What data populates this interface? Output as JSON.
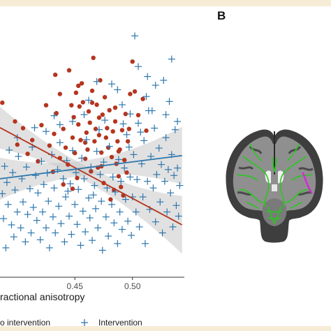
{
  "panel_b_label": "B",
  "colors": {
    "no_intervention": "#b5351f",
    "intervention": "#2f77ad",
    "axis": "#333333",
    "ci_band": "#c8c8c8",
    "tract_green": "#28c81e",
    "tract_magenta": "#d629d6",
    "page_band": "#f7ecd6"
  },
  "brain_icon": "coronal-mri-slice",
  "chart_data": {
    "type": "scatter",
    "title": "",
    "xlabel": "ractional anisotropy",
    "ylabel": "",
    "xlim": [
      0.385,
      0.545
    ],
    "ylim": [
      0,
      1
    ],
    "x_ticks": [
      0.45,
      0.5
    ],
    "x_tick_labels": [
      "0.45",
      "0.50"
    ],
    "grid": false,
    "legend_position": "bottom",
    "legend": [
      "o intervention",
      "Intervention"
    ],
    "series": [
      {
        "name": "o intervention",
        "marker": "circle",
        "fit_line": {
          "x": [
            0.385,
            0.543
          ],
          "y": [
            0.6,
            0.21
          ]
        },
        "points": [
          [
            0.387,
            0.7
          ],
          [
            0.398,
            0.625
          ],
          [
            0.4,
            0.532
          ],
          [
            0.405,
            0.598
          ],
          [
            0.409,
            0.495
          ],
          [
            0.413,
            0.55
          ],
          [
            0.418,
            0.465
          ],
          [
            0.421,
            0.61
          ],
          [
            0.425,
            0.69
          ],
          [
            0.428,
            0.528
          ],
          [
            0.431,
            0.423
          ],
          [
            0.432,
            0.575
          ],
          [
            0.433,
            0.812
          ],
          [
            0.434,
            0.658
          ],
          [
            0.437,
            0.735
          ],
          [
            0.44,
            0.595
          ],
          [
            0.442,
            0.52
          ],
          [
            0.444,
            0.452
          ],
          [
            0.445,
            0.83
          ],
          [
            0.447,
            0.69
          ],
          [
            0.448,
            0.56
          ],
          [
            0.449,
            0.642
          ],
          [
            0.45,
            0.498
          ],
          [
            0.451,
            0.74
          ],
          [
            0.452,
            0.398
          ],
          [
            0.453,
            0.613
          ],
          [
            0.454,
            0.685
          ],
          [
            0.455,
            0.55
          ],
          [
            0.456,
            0.778
          ],
          [
            0.457,
            0.702
          ],
          [
            0.459,
            0.475
          ],
          [
            0.46,
            0.58
          ],
          [
            0.461,
            0.512
          ],
          [
            0.462,
            0.665
          ],
          [
            0.463,
            0.62
          ],
          [
            0.464,
            0.425
          ],
          [
            0.465,
            0.748
          ],
          [
            0.466,
            0.88
          ],
          [
            0.467,
            0.545
          ],
          [
            0.468,
            0.595
          ],
          [
            0.469,
            0.692
          ],
          [
            0.47,
            0.44
          ],
          [
            0.471,
            0.57
          ],
          [
            0.472,
            0.79
          ],
          [
            0.473,
            0.5
          ],
          [
            0.474,
            0.652
          ],
          [
            0.475,
            0.378
          ],
          [
            0.476,
            0.722
          ],
          [
            0.478,
            0.598
          ],
          [
            0.479,
            0.52
          ],
          [
            0.48,
            0.67
          ],
          [
            0.481,
            0.312
          ],
          [
            0.482,
            0.482
          ],
          [
            0.483,
            0.585
          ],
          [
            0.484,
            0.35
          ],
          [
            0.485,
            0.625
          ],
          [
            0.486,
            0.455
          ],
          [
            0.487,
            0.545
          ],
          [
            0.488,
            0.405
          ],
          [
            0.489,
            0.512
          ],
          [
            0.49,
            0.362
          ],
          [
            0.491,
            0.59
          ],
          [
            0.492,
            0.328
          ],
          [
            0.493,
            0.47
          ],
          [
            0.494,
            0.655
          ],
          [
            0.496,
            0.545
          ],
          [
            0.497,
            0.595
          ],
          [
            0.498,
            0.735
          ],
          [
            0.5,
            0.865
          ],
          [
            0.502,
            0.745
          ],
          [
            0.505,
            0.65
          ],
          [
            0.509,
            0.715
          ],
          [
            0.512,
            0.588
          ],
          [
            0.44,
            0.372
          ],
          [
            0.448,
            0.355
          ],
          [
            0.465,
            0.7
          ],
          [
            0.477,
            0.56
          ],
          [
            0.437,
            0.478
          ],
          [
            0.495,
            0.42
          ],
          [
            0.453,
            0.768
          ],
          [
            0.485,
            0.68
          ],
          [
            0.473,
            0.445
          ],
          [
            0.459,
            0.54
          ],
          [
            0.471,
            0.64
          ],
          [
            0.488,
            0.505
          ]
        ]
      },
      {
        "name": "Intervention",
        "marker": "plus",
        "fit_line": {
          "x": [
            0.385,
            0.543
          ],
          "y": [
            0.395,
            0.488
          ]
        },
        "points": [
          [
            0.387,
            0.335
          ],
          [
            0.388,
            0.235
          ],
          [
            0.389,
            0.445
          ],
          [
            0.39,
            0.118
          ],
          [
            0.391,
            0.38
          ],
          [
            0.392,
            0.292
          ],
          [
            0.393,
            0.51
          ],
          [
            0.395,
            0.21
          ],
          [
            0.396,
            0.42
          ],
          [
            0.397,
            0.162
          ],
          [
            0.398,
            0.35
          ],
          [
            0.4,
            0.262
          ],
          [
            0.401,
            0.485
          ],
          [
            0.403,
            0.198
          ],
          [
            0.404,
            0.395
          ],
          [
            0.405,
            0.302
          ],
          [
            0.407,
            0.142
          ],
          [
            0.408,
            0.442
          ],
          [
            0.409,
            0.252
          ],
          [
            0.411,
            0.355
          ],
          [
            0.412,
            0.178
          ],
          [
            0.413,
            0.522
          ],
          [
            0.414,
            0.28
          ],
          [
            0.416,
            0.408
          ],
          [
            0.417,
            0.228
          ],
          [
            0.418,
            0.338
          ],
          [
            0.42,
            0.15
          ],
          [
            0.421,
            0.465
          ],
          [
            0.422,
            0.262
          ],
          [
            0.423,
            0.372
          ],
          [
            0.425,
            0.198
          ],
          [
            0.426,
            0.418
          ],
          [
            0.427,
            0.305
          ],
          [
            0.428,
            0.118
          ],
          [
            0.43,
            0.492
          ],
          [
            0.431,
            0.242
          ],
          [
            0.432,
            0.358
          ],
          [
            0.433,
            0.178
          ],
          [
            0.435,
            0.432
          ],
          [
            0.436,
            0.285
          ],
          [
            0.437,
            0.54
          ],
          [
            0.438,
            0.215
          ],
          [
            0.44,
            0.395
          ],
          [
            0.441,
            0.142
          ],
          [
            0.442,
            0.322
          ],
          [
            0.443,
            0.468
          ],
          [
            0.445,
            0.245
          ],
          [
            0.446,
            0.375
          ],
          [
            0.447,
            0.172
          ],
          [
            0.448,
            0.508
          ],
          [
            0.45,
            0.292
          ],
          [
            0.451,
            0.42
          ],
          [
            0.452,
            0.212
          ],
          [
            0.453,
            0.352
          ],
          [
            0.455,
            0.128
          ],
          [
            0.456,
            0.478
          ],
          [
            0.457,
            0.265
          ],
          [
            0.458,
            0.395
          ],
          [
            0.459,
            0.182
          ],
          [
            0.46,
            0.552
          ],
          [
            0.462,
            0.318
          ],
          [
            0.463,
            0.238
          ],
          [
            0.464,
            0.442
          ],
          [
            0.465,
            0.148
          ],
          [
            0.467,
            0.368
          ],
          [
            0.468,
            0.275
          ],
          [
            0.469,
            0.505
          ],
          [
            0.47,
            0.198
          ],
          [
            0.472,
            0.412
          ],
          [
            0.473,
            0.305
          ],
          [
            0.474,
            0.108
          ],
          [
            0.475,
            0.462
          ],
          [
            0.477,
            0.242
          ],
          [
            0.478,
            0.358
          ],
          [
            0.479,
            0.165
          ],
          [
            0.48,
            0.525
          ],
          [
            0.482,
            0.292
          ],
          [
            0.483,
            0.402
          ],
          [
            0.484,
            0.218
          ],
          [
            0.485,
            0.342
          ],
          [
            0.487,
            0.135
          ],
          [
            0.488,
            0.472
          ],
          [
            0.489,
            0.262
          ],
          [
            0.49,
            0.385
          ],
          [
            0.491,
            0.192
          ],
          [
            0.493,
            0.438
          ],
          [
            0.494,
            0.312
          ],
          [
            0.495,
            0.572
          ],
          [
            0.496,
            0.225
          ],
          [
            0.498,
            0.402
          ],
          [
            0.499,
            0.168
          ],
          [
            0.5,
            0.322
          ],
          [
            0.501,
            0.492
          ],
          [
            0.503,
            0.262
          ],
          [
            0.504,
            0.392
          ],
          [
            0.505,
            0.618
          ],
          [
            0.506,
            0.202
          ],
          [
            0.508,
            0.455
          ],
          [
            0.509,
            0.322
          ],
          [
            0.51,
            0.548
          ],
          [
            0.511,
            0.135
          ],
          [
            0.513,
            0.385
          ],
          [
            0.514,
            0.668
          ],
          [
            0.515,
            0.272
          ],
          [
            0.516,
            0.485
          ],
          [
            0.518,
            0.358
          ],
          [
            0.519,
            0.598
          ],
          [
            0.52,
            0.222
          ],
          [
            0.521,
            0.412
          ],
          [
            0.523,
            0.518
          ],
          [
            0.524,
            0.302
          ],
          [
            0.525,
            0.452
          ],
          [
            0.526,
            0.178
          ],
          [
            0.528,
            0.385
          ],
          [
            0.529,
            0.56
          ],
          [
            0.53,
            0.262
          ],
          [
            0.531,
            0.432
          ],
          [
            0.532,
            0.705
          ],
          [
            0.533,
            0.338
          ],
          [
            0.534,
            0.492
          ],
          [
            0.535,
            0.202
          ],
          [
            0.536,
            0.408
          ],
          [
            0.537,
            0.592
          ],
          [
            0.538,
            0.288
          ],
          [
            0.539,
            0.438
          ],
          [
            0.54,
            0.245
          ],
          [
            0.541,
            0.368
          ],
          [
            0.469,
            0.785
          ],
          [
            0.487,
            0.752
          ],
          [
            0.502,
            0.968
          ],
          [
            0.505,
            0.845
          ],
          [
            0.534,
            0.875
          ],
          [
            0.527,
            0.79
          ],
          [
            0.512,
            0.725
          ],
          [
            0.491,
            0.692
          ],
          [
            0.458,
            0.652
          ],
          [
            0.476,
            0.63
          ],
          [
            0.498,
            0.655
          ],
          [
            0.517,
            0.668
          ],
          [
            0.529,
            0.652
          ],
          [
            0.448,
            0.625
          ],
          [
            0.432,
            0.648
          ],
          [
            0.415,
            0.6
          ],
          [
            0.52,
            0.77
          ],
          [
            0.513,
            0.805
          ],
          [
            0.4,
            0.56
          ],
          [
            0.462,
            0.71
          ],
          [
            0.482,
            0.775
          ],
          [
            0.444,
            0.345
          ],
          [
            0.466,
            0.33
          ],
          [
            0.497,
            0.522
          ],
          [
            0.507,
            0.582
          ],
          [
            0.425,
            0.585
          ],
          [
            0.437,
            0.612
          ],
          [
            0.471,
            0.592
          ],
          [
            0.539,
            0.625
          ],
          [
            0.492,
            0.615
          ]
        ]
      }
    ]
  }
}
